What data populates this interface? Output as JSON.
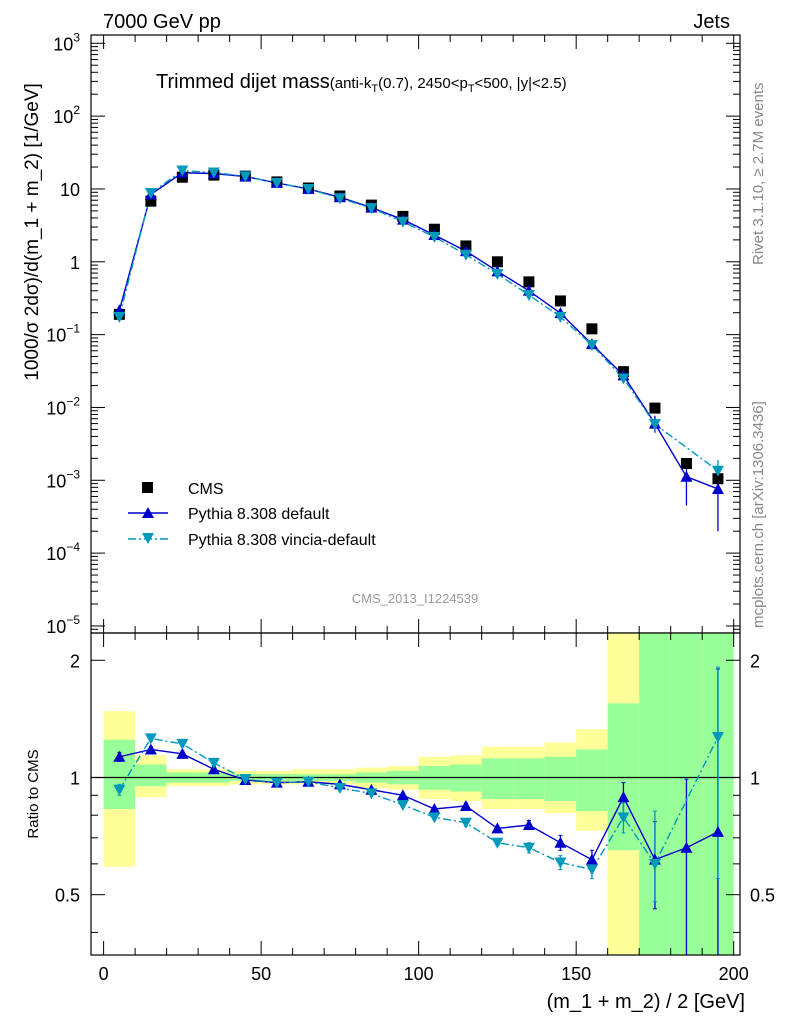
{
  "header": {
    "left_label": "7000 GeV pp",
    "right_label": "Jets",
    "side_rivet": "Rivet 3.1.10, ≥ 2.7M events",
    "side_mcplots": "mcplots.cern.ch [arXiv:1306.3436]",
    "analysis_id": "CMS_2013_I1224539"
  },
  "colors": {
    "cms": "#000000",
    "pythia_default": "#0000cc",
    "pythia_vincia": "#0099bb",
    "band_inner": "#99ff99",
    "band_outer": "#ffff99"
  },
  "chart_data": [
    {
      "type": "scatter",
      "panel": "main",
      "title_main": "Trimmed dijet mass",
      "title_sub_a": "(anti-k",
      "title_sub_a_sub": "T",
      "title_sub_b": "(0.7), 2450<p",
      "title_sub_b_sub": "T",
      "title_sub_c": "<500, |y|<2.5)",
      "ylabel": "1000/σ 2dσ)/d(m_1 + m_2) [1/GeV]",
      "yscale": "log",
      "ylim": [
        8e-06,
        1300
      ],
      "xlim": [
        -4,
        202
      ],
      "y_ticks": [
        {
          "v": 1e-05,
          "mant": "10",
          "exp": "−5"
        },
        {
          "v": 0.0001,
          "mant": "10",
          "exp": "−4"
        },
        {
          "v": 0.001,
          "mant": "10",
          "exp": "−3"
        },
        {
          "v": 0.01,
          "mant": "10",
          "exp": "−2"
        },
        {
          "v": 0.1,
          "mant": "10",
          "exp": "−1"
        },
        {
          "v": 1,
          "mant": "1",
          "exp": ""
        },
        {
          "v": 10,
          "mant": "10",
          "exp": ""
        },
        {
          "v": 100,
          "mant": "10",
          "exp": "2"
        },
        {
          "v": 1000,
          "mant": "10",
          "exp": "3"
        }
      ],
      "legend_position": "lower-left",
      "x": [
        5,
        15,
        25,
        35,
        45,
        55,
        65,
        75,
        85,
        95,
        105,
        115,
        125,
        135,
        145,
        155,
        165,
        175,
        185,
        195
      ],
      "series": [
        {
          "name": "CMS",
          "style": "square",
          "values": [
            0.19,
            6.8,
            14.5,
            15.5,
            15.0,
            12.5,
            10.3,
            8.0,
            6.0,
            4.2,
            2.8,
            1.65,
            1.0,
            0.53,
            0.29,
            0.12,
            0.031,
            0.0098,
            0.0017,
            0.00105
          ]
        },
        {
          "name": "Pythia 8.308 default",
          "style": "triangle-up",
          "values": [
            0.215,
            8.4,
            16.7,
            16.3,
            14.8,
            12.1,
            10.0,
            7.7,
            5.55,
            3.8,
            2.33,
            1.4,
            0.74,
            0.4,
            0.197,
            0.074,
            0.0276,
            0.006,
            0.00112,
            0.00076
          ],
          "err_low": [
            0.2,
            8.2,
            16.4,
            16.1,
            14.6,
            11.9,
            9.8,
            7.5,
            5.45,
            3.7,
            2.28,
            1.37,
            0.72,
            0.385,
            0.19,
            0.07,
            0.025,
            0.0045,
            0.00045,
            0.0002
          ],
          "err_high": [
            0.23,
            8.6,
            17.0,
            16.5,
            15.0,
            12.3,
            10.2,
            7.9,
            5.65,
            3.9,
            2.38,
            1.43,
            0.76,
            0.415,
            0.205,
            0.078,
            0.0302,
            0.0077,
            0.0018,
            0.0013
          ]
        },
        {
          "name": "Pythia 8.308 vincia-default",
          "style": "triangle-down",
          "values": [
            0.175,
            8.8,
            17.9,
            16.8,
            14.9,
            12.1,
            10.0,
            7.45,
            5.45,
            3.55,
            2.2,
            1.25,
            0.68,
            0.35,
            0.175,
            0.072,
            0.025,
            0.0059,
            0.0,
            0.00135
          ],
          "err_low": [
            0.165,
            8.6,
            17.6,
            16.6,
            14.7,
            11.9,
            9.8,
            7.3,
            5.35,
            3.45,
            2.15,
            1.22,
            0.66,
            0.34,
            0.168,
            0.068,
            0.022,
            0.0047,
            0.0,
            0.0009
          ],
          "err_high": [
            0.185,
            9.0,
            18.2,
            17.0,
            15.1,
            12.3,
            10.2,
            7.6,
            5.55,
            3.65,
            2.25,
            1.28,
            0.7,
            0.36,
            0.182,
            0.076,
            0.028,
            0.0072,
            0.0,
            0.0019
          ]
        }
      ]
    },
    {
      "type": "scatter",
      "panel": "ratio",
      "ylabel": "Ratio to CMS",
      "xlabel": "(m_1 + m_2) / 2 [GeV]",
      "yscale": "log",
      "ylim": [
        0.35,
        2.35
      ],
      "xlim": [
        -4,
        202
      ],
      "y_ticks": [
        {
          "v": 0.5,
          "label": "0.5"
        },
        {
          "v": 1,
          "label": "1"
        },
        {
          "v": 2,
          "label": "2"
        }
      ],
      "x_ticks": [
        0,
        50,
        100,
        150,
        200
      ],
      "bins": [
        [
          0,
          10
        ],
        [
          10,
          20
        ],
        [
          20,
          30
        ],
        [
          30,
          40
        ],
        [
          40,
          50
        ],
        [
          50,
          60
        ],
        [
          60,
          70
        ],
        [
          70,
          80
        ],
        [
          80,
          90
        ],
        [
          90,
          100
        ],
        [
          100,
          110
        ],
        [
          110,
          120
        ],
        [
          120,
          130
        ],
        [
          130,
          140
        ],
        [
          140,
          150
        ],
        [
          150,
          160
        ],
        [
          160,
          170
        ],
        [
          170,
          180
        ],
        [
          180,
          190
        ],
        [
          190,
          200
        ]
      ],
      "band_inner": [
        [
          0.83,
          1.25
        ],
        [
          0.95,
          1.08
        ],
        [
          0.97,
          1.03
        ],
        [
          0.97,
          1.03
        ],
        [
          0.98,
          1.02
        ],
        [
          0.98,
          1.02
        ],
        [
          0.98,
          1.02
        ],
        [
          0.98,
          1.02
        ],
        [
          0.97,
          1.03
        ],
        [
          0.96,
          1.04
        ],
        [
          0.93,
          1.07
        ],
        [
          0.92,
          1.08
        ],
        [
          0.88,
          1.12
        ],
        [
          0.88,
          1.12
        ],
        [
          0.87,
          1.13
        ],
        [
          0.82,
          1.18
        ],
        [
          0.65,
          1.55
        ],
        [
          0.35,
          2.4
        ],
        [
          0.35,
          2.4
        ],
        [
          0.35,
          2.4
        ]
      ],
      "band_outer": [
        [
          0.59,
          1.48
        ],
        [
          0.89,
          1.14
        ],
        [
          0.95,
          1.05
        ],
        [
          0.95,
          1.05
        ],
        [
          0.96,
          1.04
        ],
        [
          0.96,
          1.04
        ],
        [
          0.96,
          1.05
        ],
        [
          0.96,
          1.05
        ],
        [
          0.94,
          1.06
        ],
        [
          0.93,
          1.07
        ],
        [
          0.88,
          1.13
        ],
        [
          0.87,
          1.14
        ],
        [
          0.83,
          1.2
        ],
        [
          0.83,
          1.2
        ],
        [
          0.81,
          1.23
        ],
        [
          0.73,
          1.33
        ],
        [
          0.35,
          2.4
        ],
        [
          0.35,
          2.4
        ],
        [
          0.35,
          2.4
        ],
        [
          0.35,
          2.4
        ]
      ],
      "series": [
        {
          "name": "Pythia 8.308 default",
          "style": "triangle-up",
          "values": [
            1.13,
            1.18,
            1.15,
            1.05,
            0.985,
            0.97,
            0.975,
            0.96,
            0.93,
            0.9,
            0.83,
            0.845,
            0.74,
            0.755,
            0.68,
            0.615,
            0.89,
            0.615,
            0.66,
            0.725
          ],
          "err_low": [
            1.1,
            1.16,
            1.13,
            1.03,
            0.975,
            0.96,
            0.965,
            0.95,
            0.92,
            0.89,
            0.82,
            0.83,
            0.73,
            0.735,
            0.65,
            0.58,
            0.8,
            0.46,
            0.2,
            0.2
          ],
          "err_high": [
            1.16,
            1.2,
            1.17,
            1.07,
            0.995,
            0.98,
            0.985,
            0.97,
            0.94,
            0.91,
            0.84,
            0.86,
            0.75,
            0.775,
            0.71,
            0.65,
            0.97,
            0.77,
            0.99,
            1.9
          ]
        },
        {
          "name": "Pythia 8.308 vincia-default",
          "style": "triangle-down",
          "values": [
            0.93,
            1.26,
            1.22,
            1.09,
            0.99,
            0.97,
            0.975,
            0.94,
            0.91,
            0.85,
            0.79,
            0.765,
            0.68,
            0.66,
            0.605,
            0.58,
            0.79,
            0.6,
            0.0,
            1.27
          ],
          "err_low": [
            0.9,
            1.24,
            1.2,
            1.07,
            0.98,
            0.96,
            0.965,
            0.93,
            0.9,
            0.84,
            0.78,
            0.75,
            0.67,
            0.64,
            0.58,
            0.55,
            0.72,
            0.48,
            0.0,
            0.55
          ],
          "err_high": [
            0.96,
            1.28,
            1.24,
            1.11,
            1.0,
            0.98,
            0.985,
            0.95,
            0.92,
            0.86,
            0.8,
            0.78,
            0.69,
            0.68,
            0.63,
            0.61,
            0.86,
            0.82,
            0.0,
            1.92
          ]
        }
      ]
    }
  ]
}
